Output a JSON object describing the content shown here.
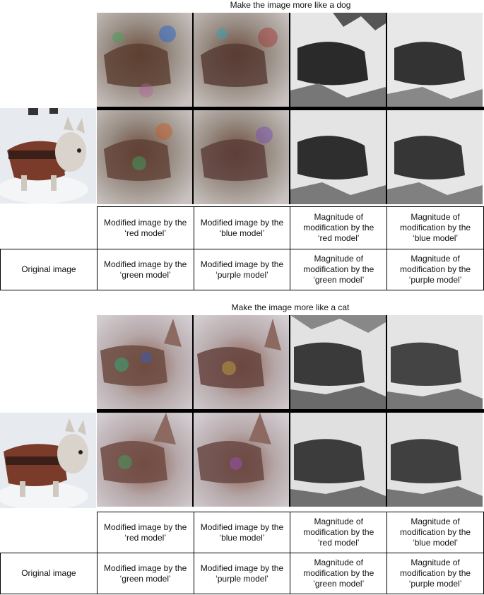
{
  "panels": [
    {
      "title": "Make the image more like a dog",
      "captions": {
        "original": "Original image",
        "row1": [
          "Modified image by the\n‘red model’",
          "Modified image by the\n‘blue model’",
          "Magnitude of\nmodification by the\n‘red model’",
          "Magnitude of\nmodification by the\n‘blue model’"
        ],
        "row2": [
          "Modified image by the\n‘green model’",
          "Modified image by the\n‘purple model’",
          "Magnitude of\nmodification by the\n‘green model’",
          "Magnitude of\nmodification by the\n‘purple model’"
        ]
      }
    },
    {
      "title": "Make the image more like a cat",
      "captions": {
        "original": "Original image",
        "row1": [
          "Modified image by the\n‘red model’",
          "Modified image by the\n‘blue model’",
          "Magnitude of\nmodification by the\n‘red model’",
          "Magnitude of\nmodification by the\n‘blue model’"
        ],
        "row2": [
          "Modified image by the\n‘green model’",
          "Modified image by the\n‘purple model’",
          "Magnitude of\nmodification by the\n‘green model’",
          "Magnitude of\nmodification by the\n‘purple model’"
        ]
      }
    }
  ],
  "colors": {
    "snow": "#e9ecef",
    "coat": "#7a3b2a",
    "fur": "#cfc8bf",
    "grid_line": "#000000"
  }
}
